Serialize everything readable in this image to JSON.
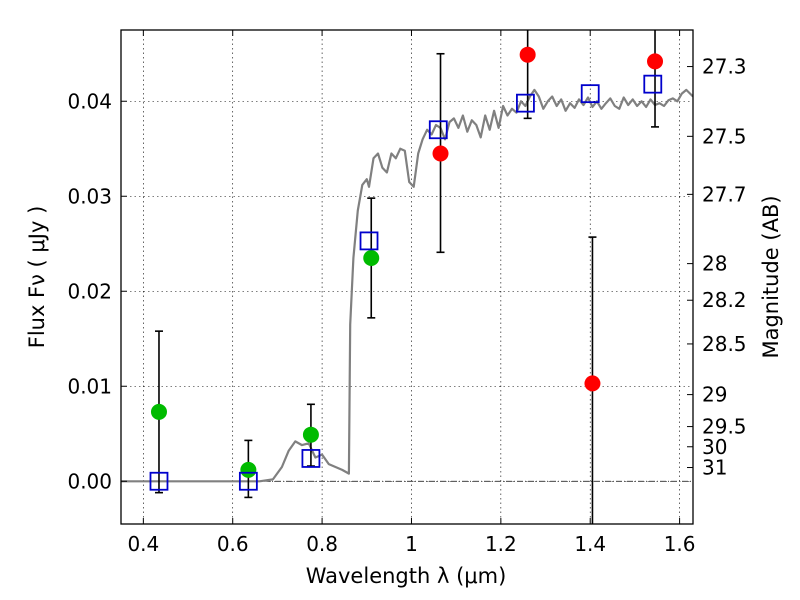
{
  "chart_data": {
    "type": "scatter",
    "title": "",
    "xlabel": "Wavelength  λ (μm)",
    "ylabel": "Flux  Fν  ( μJy )",
    "y2label": "Magnitude (AB)",
    "xlim": [
      0.35,
      1.63
    ],
    "ylim": [
      -0.0045,
      0.0475
    ],
    "grid": true,
    "x_ticks": [
      {
        "value": 0.4,
        "label": "0.4"
      },
      {
        "value": 0.6,
        "label": "0.6"
      },
      {
        "value": 0.8,
        "label": "0.8"
      },
      {
        "value": 1.0,
        "label": "1"
      },
      {
        "value": 1.2,
        "label": "1.2"
      },
      {
        "value": 1.4,
        "label": "1.4"
      },
      {
        "value": 1.6,
        "label": "1.6"
      }
    ],
    "y_ticks": [
      {
        "value": 0.0,
        "label": "0.00"
      },
      {
        "value": 0.01,
        "label": "0.01"
      },
      {
        "value": 0.02,
        "label": "0.02"
      },
      {
        "value": 0.03,
        "label": "0.03"
      },
      {
        "value": 0.04,
        "label": "0.04"
      }
    ],
    "y2_ticks": [
      {
        "mag": 27.3,
        "label": "27.3"
      },
      {
        "mag": 27.5,
        "label": "27.5"
      },
      {
        "mag": 27.7,
        "label": "27.7"
      },
      {
        "mag": 28.0,
        "label": "28"
      },
      {
        "mag": 28.2,
        "label": "28.2"
      },
      {
        "mag": 28.5,
        "label": "28.5"
      },
      {
        "mag": 29.0,
        "label": "29"
      },
      {
        "mag": 29.5,
        "label": "29.5"
      },
      {
        "mag": 30.0,
        "label": "30"
      },
      {
        "mag": 31.0,
        "label": "31"
      }
    ],
    "colors": {
      "model_line": "#808080",
      "model_points": "#0000cc",
      "detected": "#00bb00",
      "red_points": "#ff0000",
      "errorbar": "#000000",
      "zero_line": "#000000"
    },
    "model_spectrum": [
      [
        0.35,
        0.0
      ],
      [
        0.6,
        0.0
      ],
      [
        0.66,
        0.0
      ],
      [
        0.69,
        0.0002
      ],
      [
        0.71,
        0.0015
      ],
      [
        0.725,
        0.0032
      ],
      [
        0.74,
        0.0042
      ],
      [
        0.755,
        0.0038
      ],
      [
        0.77,
        0.004
      ],
      [
        0.785,
        0.0025
      ],
      [
        0.8,
        0.0028
      ],
      [
        0.815,
        0.0018
      ],
      [
        0.83,
        0.0015
      ],
      [
        0.845,
        0.0012
      ],
      [
        0.86,
        0.0008
      ],
      [
        0.863,
        0.0165
      ],
      [
        0.87,
        0.0235
      ],
      [
        0.88,
        0.0285
      ],
      [
        0.89,
        0.0312
      ],
      [
        0.9,
        0.0318
      ],
      [
        0.905,
        0.031
      ],
      [
        0.915,
        0.034
      ],
      [
        0.925,
        0.0345
      ],
      [
        0.935,
        0.033
      ],
      [
        0.945,
        0.0325
      ],
      [
        0.955,
        0.0345
      ],
      [
        0.965,
        0.034
      ],
      [
        0.975,
        0.035
      ],
      [
        0.985,
        0.0348
      ],
      [
        0.995,
        0.0315
      ],
      [
        1.005,
        0.031
      ],
      [
        1.015,
        0.0345
      ],
      [
        1.025,
        0.036
      ],
      [
        1.035,
        0.037
      ],
      [
        1.045,
        0.0365
      ],
      [
        1.055,
        0.0375
      ],
      [
        1.065,
        0.0372
      ],
      [
        1.075,
        0.036
      ],
      [
        1.085,
        0.0378
      ],
      [
        1.095,
        0.0382
      ],
      [
        1.105,
        0.0372
      ],
      [
        1.115,
        0.0385
      ],
      [
        1.125,
        0.0368
      ],
      [
        1.135,
        0.038
      ],
      [
        1.145,
        0.0375
      ],
      [
        1.155,
        0.0362
      ],
      [
        1.165,
        0.0385
      ],
      [
        1.175,
        0.037
      ],
      [
        1.185,
        0.039
      ],
      [
        1.195,
        0.0372
      ],
      [
        1.205,
        0.0395
      ],
      [
        1.215,
        0.0385
      ],
      [
        1.225,
        0.0392
      ],
      [
        1.235,
        0.0388
      ],
      [
        1.245,
        0.04
      ],
      [
        1.255,
        0.0395
      ],
      [
        1.265,
        0.0405
      ],
      [
        1.275,
        0.0412
      ],
      [
        1.285,
        0.0405
      ],
      [
        1.295,
        0.0392
      ],
      [
        1.305,
        0.04
      ],
      [
        1.315,
        0.0405
      ],
      [
        1.325,
        0.0395
      ],
      [
        1.335,
        0.0402
      ],
      [
        1.345,
        0.039
      ],
      [
        1.355,
        0.0398
      ],
      [
        1.365,
        0.0393
      ],
      [
        1.375,
        0.0402
      ],
      [
        1.385,
        0.0396
      ],
      [
        1.395,
        0.0404
      ],
      [
        1.405,
        0.0394
      ],
      [
        1.415,
        0.04
      ],
      [
        1.425,
        0.0392
      ],
      [
        1.435,
        0.0398
      ],
      [
        1.445,
        0.0403
      ],
      [
        1.455,
        0.0395
      ],
      [
        1.465,
        0.0392
      ],
      [
        1.475,
        0.0404
      ],
      [
        1.485,
        0.0396
      ],
      [
        1.495,
        0.0402
      ],
      [
        1.505,
        0.0395
      ],
      [
        1.515,
        0.04
      ],
      [
        1.525,
        0.0394
      ],
      [
        1.535,
        0.0402
      ],
      [
        1.545,
        0.0396
      ],
      [
        1.555,
        0.0398
      ],
      [
        1.565,
        0.0395
      ],
      [
        1.575,
        0.0401
      ],
      [
        1.585,
        0.0403
      ],
      [
        1.595,
        0.04
      ],
      [
        1.605,
        0.0408
      ],
      [
        1.615,
        0.0412
      ],
      [
        1.63,
        0.0405
      ]
    ],
    "model_points": [
      {
        "x": 0.435,
        "y": 0.0
      },
      {
        "x": 0.635,
        "y": 0.0
      },
      {
        "x": 0.775,
        "y": 0.0024
      },
      {
        "x": 0.905,
        "y": 0.0253
      },
      {
        "x": 1.06,
        "y": 0.037
      },
      {
        "x": 1.255,
        "y": 0.0398
      },
      {
        "x": 1.4,
        "y": 0.0408
      },
      {
        "x": 1.54,
        "y": 0.0418
      }
    ],
    "observed": [
      {
        "x": 0.435,
        "y": 0.0073,
        "ylo": -0.0012,
        "yhi": 0.0158,
        "color": "#00bb00"
      },
      {
        "x": 0.635,
        "y": 0.0012,
        "ylo": -0.0017,
        "yhi": 0.0043,
        "color": "#00bb00"
      },
      {
        "x": 0.775,
        "y": 0.0049,
        "ylo": 0.0016,
        "yhi": 0.0081,
        "color": "#00bb00"
      },
      {
        "x": 0.91,
        "y": 0.0235,
        "ylo": 0.0172,
        "yhi": 0.0298,
        "color": "#00bb00"
      },
      {
        "x": 1.065,
        "y": 0.0345,
        "ylo": 0.0241,
        "yhi": 0.045,
        "color": "#ff0000"
      },
      {
        "x": 1.26,
        "y": 0.0449,
        "ylo": 0.0382,
        "yhi": 0.0475,
        "color": "#ff0000"
      },
      {
        "x": 1.405,
        "y": 0.0103,
        "ylo": -0.0045,
        "yhi": 0.0257,
        "color": "#ff0000"
      },
      {
        "x": 1.545,
        "y": 0.0442,
        "ylo": 0.0373,
        "yhi": 0.0475,
        "color": "#ff0000"
      }
    ]
  }
}
